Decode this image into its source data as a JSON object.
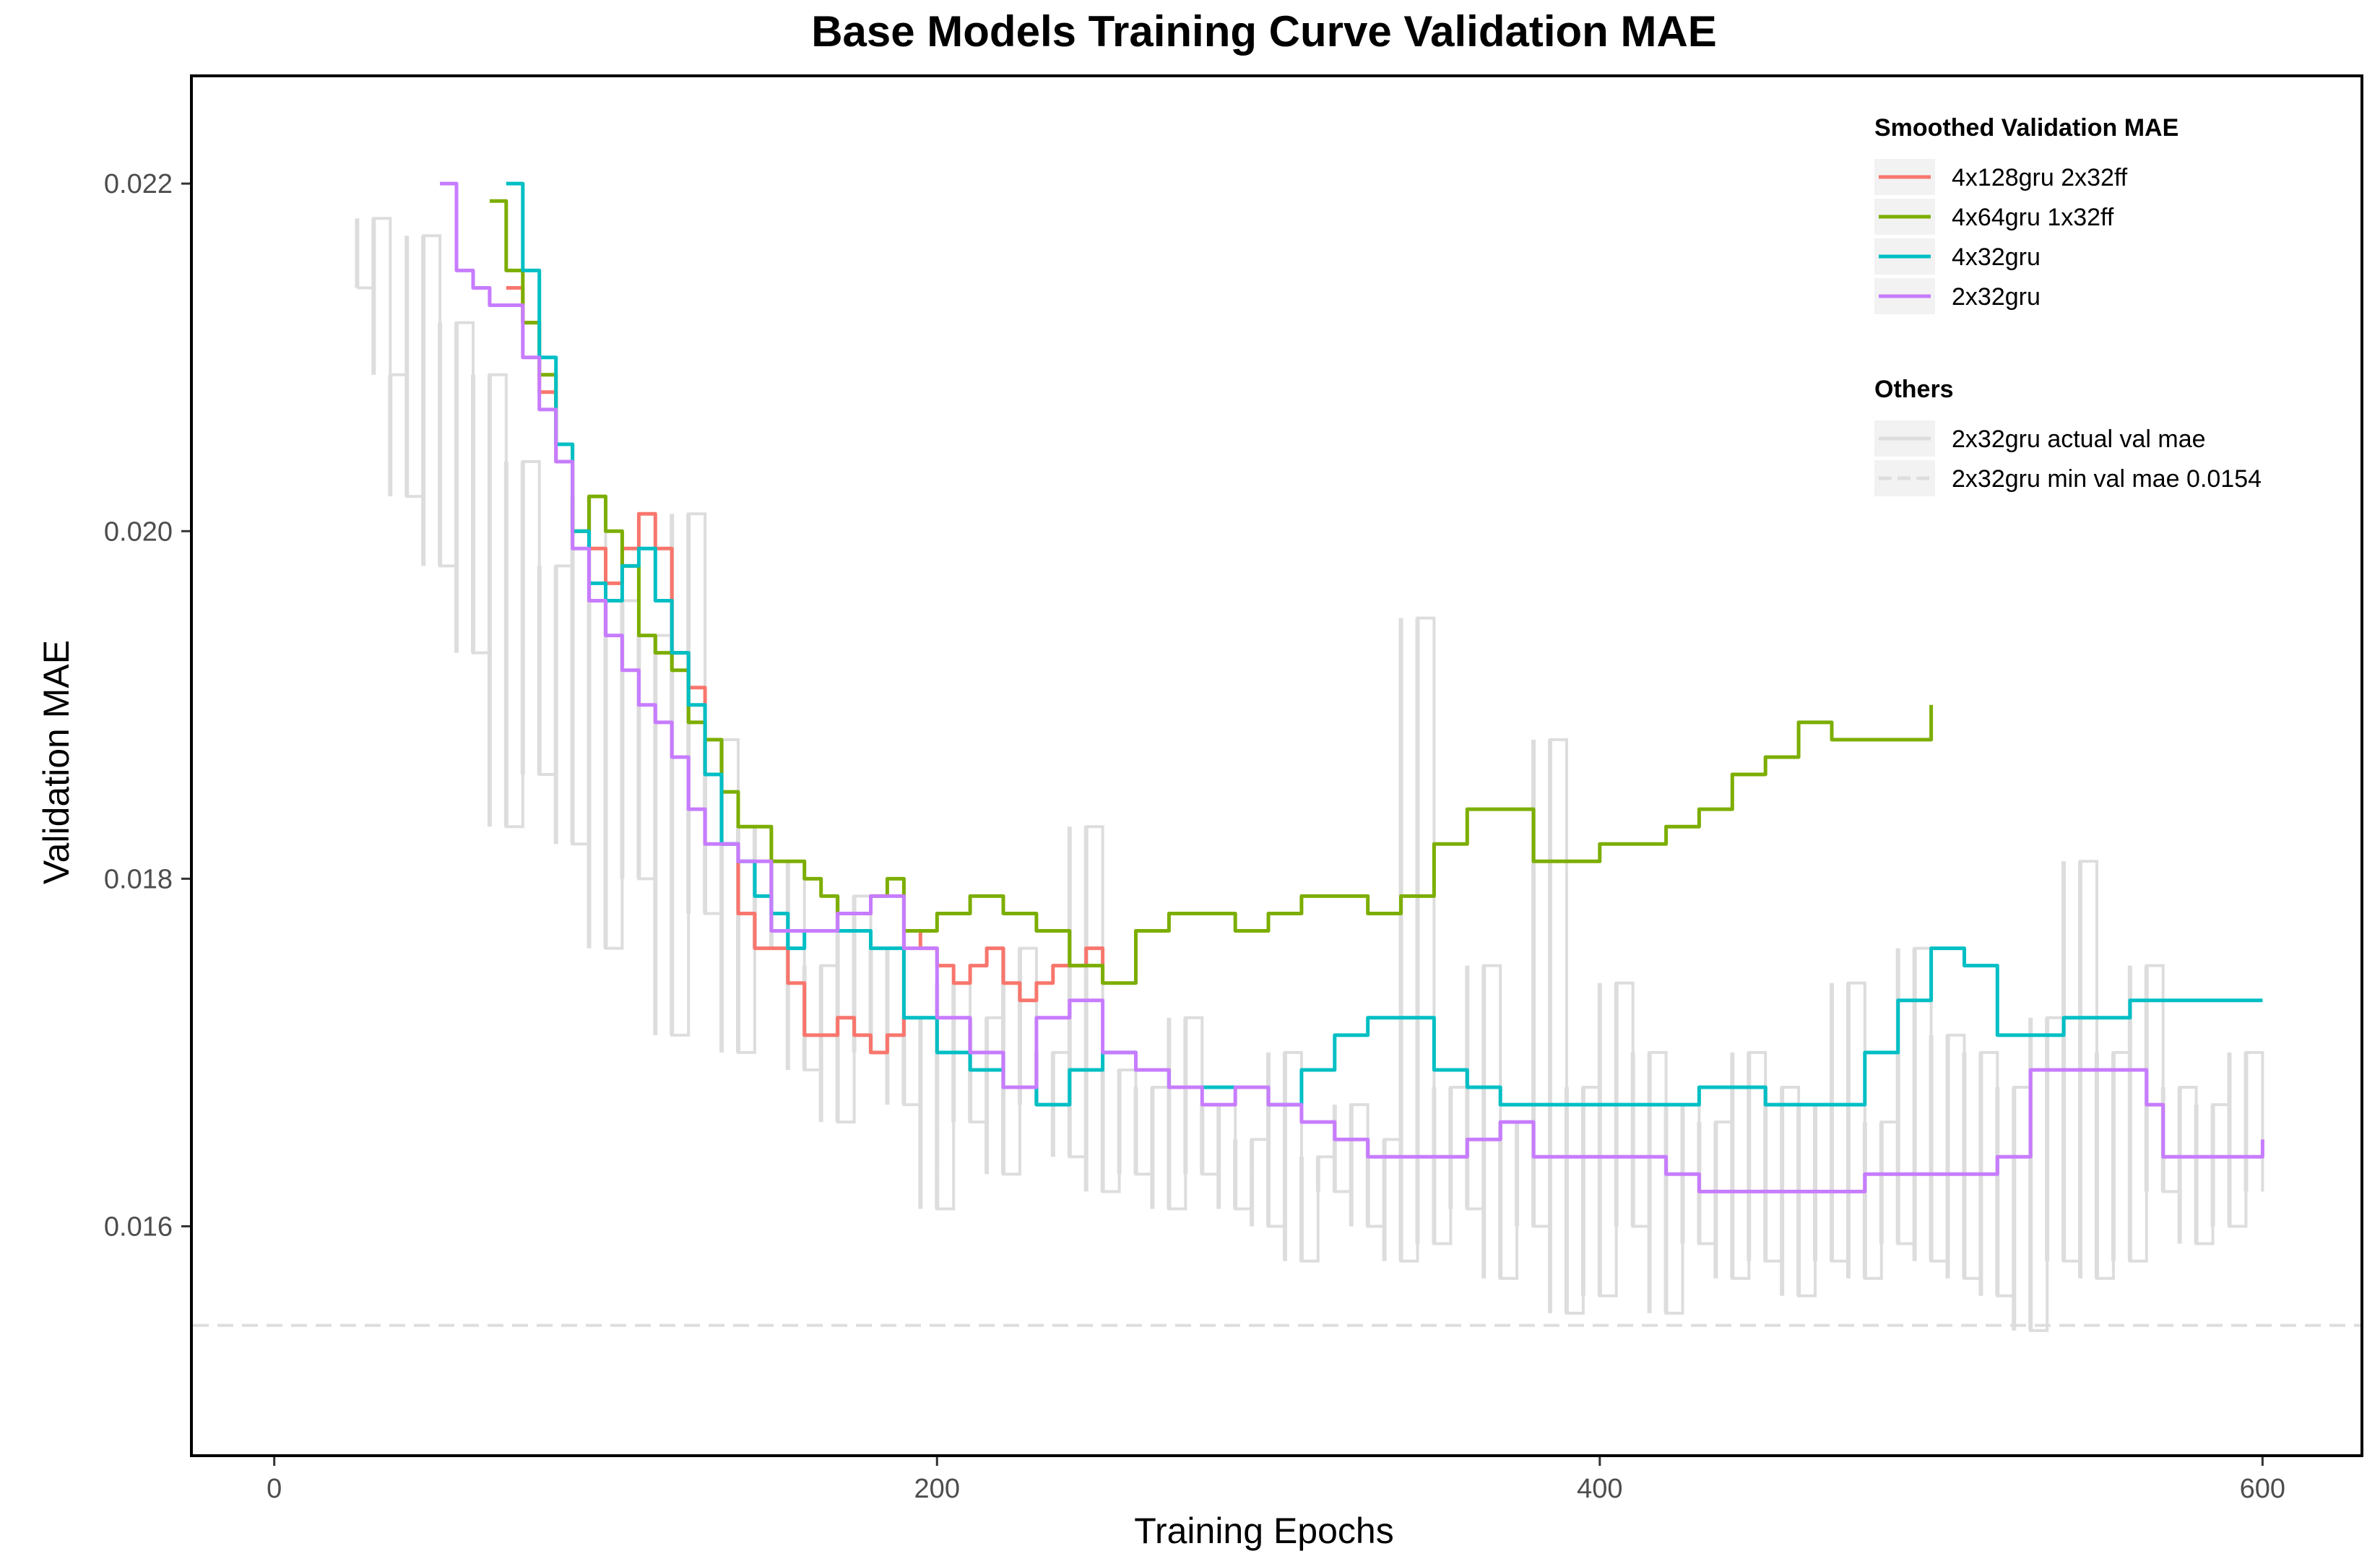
{
  "chart_data": {
    "type": "line",
    "title": "Base Models Training Curve Validation MAE",
    "xlabel": "Training Epochs",
    "ylabel": "Validation MAE",
    "xlim": [
      -25,
      630
    ],
    "ylim": [
      0.01468,
      0.02262
    ],
    "x_ticks": [
      0,
      200,
      400,
      600
    ],
    "x_tick_labels": [
      "0",
      "200",
      "400",
      "600"
    ],
    "y_ticks": [
      0.016,
      0.018,
      0.02,
      0.022
    ],
    "y_tick_labels": [
      "0.016",
      "0.018",
      "0.020",
      "0.022"
    ],
    "grid": false,
    "legend_position": "top-right",
    "legend_groups": [
      {
        "title": "Smoothed Validation MAE",
        "entries": [
          "4x128gru 2x32ff",
          "4x64gru 1x32ff",
          "4x32gru",
          "2x32gru"
        ]
      },
      {
        "title": "Others",
        "entries": [
          "2x32gru actual val mae",
          "2x32gru min val mae 0.0154"
        ]
      }
    ],
    "series": [
      {
        "name": "4x128gru 2x32ff",
        "color": "#f8766d",
        "x": [
          70,
          75,
          80,
          85,
          90,
          95,
          100,
          105,
          110,
          115,
          120,
          125,
          130,
          135,
          140,
          145,
          150,
          155,
          160,
          165,
          170,
          175,
          180,
          185,
          190,
          195,
          200,
          205,
          210,
          215,
          220,
          225,
          230,
          235,
          240,
          245,
          250
        ],
        "values": [
          0.0214,
          0.0212,
          0.0208,
          0.0204,
          0.02,
          0.0199,
          0.0197,
          0.0199,
          0.0201,
          0.0199,
          0.0193,
          0.0191,
          0.0186,
          0.0182,
          0.0178,
          0.0176,
          0.0176,
          0.0174,
          0.0171,
          0.0171,
          0.0172,
          0.0171,
          0.017,
          0.0171,
          0.0177,
          0.0176,
          0.0175,
          0.0174,
          0.0175,
          0.0176,
          0.0174,
          0.0173,
          0.0174,
          0.0175,
          0.0175,
          0.0176,
          0.0174
        ]
      },
      {
        "name": "4x64gru 1x32ff",
        "color": "#7cae00",
        "x": [
          65,
          70,
          75,
          80,
          85,
          90,
          95,
          100,
          105,
          110,
          115,
          120,
          125,
          130,
          135,
          140,
          145,
          150,
          155,
          160,
          165,
          170,
          175,
          180,
          185,
          190,
          200,
          210,
          220,
          230,
          240,
          250,
          260,
          270,
          280,
          290,
          300,
          310,
          320,
          330,
          340,
          350,
          360,
          370,
          380,
          390,
          400,
          410,
          420,
          430,
          440,
          450,
          460,
          470,
          480,
          490,
          500
        ],
        "values": [
          0.0219,
          0.0215,
          0.0212,
          0.0209,
          0.0205,
          0.02,
          0.0202,
          0.02,
          0.0198,
          0.0194,
          0.0193,
          0.0192,
          0.0189,
          0.0188,
          0.0185,
          0.0183,
          0.0183,
          0.0181,
          0.0181,
          0.018,
          0.0179,
          0.0178,
          0.0178,
          0.0179,
          0.018,
          0.0177,
          0.0178,
          0.0179,
          0.0178,
          0.0177,
          0.0175,
          0.0174,
          0.0177,
          0.0178,
          0.0178,
          0.0177,
          0.0178,
          0.0179,
          0.0179,
          0.0178,
          0.0179,
          0.0182,
          0.0184,
          0.0184,
          0.0181,
          0.0181,
          0.0182,
          0.0182,
          0.0183,
          0.0184,
          0.0186,
          0.0187,
          0.0189,
          0.0188,
          0.0188,
          0.0188,
          0.019
        ]
      },
      {
        "name": "4x32gru",
        "color": "#00bfc4",
        "x": [
          70,
          75,
          80,
          85,
          90,
          95,
          100,
          105,
          110,
          115,
          120,
          125,
          130,
          135,
          140,
          145,
          150,
          155,
          160,
          170,
          180,
          190,
          200,
          210,
          220,
          230,
          240,
          250,
          260,
          270,
          280,
          290,
          300,
          310,
          320,
          330,
          340,
          350,
          360,
          370,
          380,
          390,
          400,
          410,
          420,
          430,
          440,
          450,
          460,
          470,
          480,
          490,
          500,
          510,
          520,
          530,
          540,
          550,
          560,
          570,
          580,
          590,
          600
        ],
        "values": [
          0.022,
          0.0215,
          0.021,
          0.0205,
          0.02,
          0.0197,
          0.0196,
          0.0198,
          0.0199,
          0.0196,
          0.0193,
          0.019,
          0.0186,
          0.0182,
          0.0181,
          0.0179,
          0.0178,
          0.0176,
          0.0177,
          0.0177,
          0.0176,
          0.0172,
          0.017,
          0.0169,
          0.0168,
          0.0167,
          0.0169,
          0.017,
          0.0169,
          0.0168,
          0.0168,
          0.0168,
          0.0167,
          0.0169,
          0.0171,
          0.0172,
          0.0172,
          0.0169,
          0.0168,
          0.0167,
          0.0167,
          0.0167,
          0.0167,
          0.0167,
          0.0167,
          0.0168,
          0.0168,
          0.0167,
          0.0167,
          0.0167,
          0.017,
          0.0173,
          0.0176,
          0.0175,
          0.0171,
          0.0171,
          0.0172,
          0.0172,
          0.0173,
          0.0173,
          0.0173,
          0.0173,
          0.0173
        ]
      },
      {
        "name": "2x32gru",
        "color": "#c77cff",
        "x": [
          50,
          55,
          60,
          65,
          70,
          75,
          80,
          85,
          90,
          95,
          100,
          105,
          110,
          115,
          120,
          125,
          130,
          140,
          150,
          160,
          170,
          180,
          190,
          200,
          210,
          220,
          230,
          240,
          250,
          260,
          270,
          280,
          290,
          300,
          310,
          320,
          330,
          340,
          350,
          360,
          370,
          380,
          390,
          400,
          410,
          420,
          430,
          440,
          450,
          460,
          470,
          480,
          490,
          500,
          510,
          520,
          525,
          530,
          540,
          550,
          560,
          565,
          570,
          580,
          590,
          600
        ],
        "values": [
          0.022,
          0.0215,
          0.0214,
          0.0213,
          0.0213,
          0.021,
          0.0207,
          0.0204,
          0.0199,
          0.0196,
          0.0194,
          0.0192,
          0.019,
          0.0189,
          0.0187,
          0.0184,
          0.0182,
          0.0181,
          0.0177,
          0.0177,
          0.0178,
          0.0179,
          0.0176,
          0.0172,
          0.017,
          0.0168,
          0.0172,
          0.0173,
          0.017,
          0.0169,
          0.0168,
          0.0167,
          0.0168,
          0.0167,
          0.0166,
          0.0165,
          0.0164,
          0.0164,
          0.0164,
          0.0165,
          0.0166,
          0.0164,
          0.0164,
          0.0164,
          0.0164,
          0.0163,
          0.0162,
          0.0162,
          0.0162,
          0.0162,
          0.0162,
          0.0163,
          0.0163,
          0.0163,
          0.0163,
          0.0164,
          0.0164,
          0.0169,
          0.0169,
          0.0169,
          0.0169,
          0.0167,
          0.0164,
          0.0164,
          0.0164,
          0.0165
        ]
      },
      {
        "name": "2x32gru actual val mae",
        "color": "#dddddd",
        "x": [
          25,
          30,
          35,
          40,
          45,
          50,
          55,
          60,
          65,
          70,
          75,
          80,
          85,
          90,
          95,
          100,
          105,
          110,
          115,
          120,
          125,
          130,
          135,
          140,
          145,
          150,
          155,
          160,
          165,
          170,
          175,
          180,
          185,
          190,
          195,
          200,
          205,
          210,
          215,
          220,
          225,
          230,
          235,
          240,
          245,
          250,
          255,
          260,
          265,
          270,
          275,
          280,
          285,
          290,
          295,
          300,
          305,
          310,
          315,
          320,
          325,
          330,
          335,
          340,
          345,
          350,
          355,
          360,
          365,
          370,
          375,
          380,
          385,
          390,
          395,
          400,
          405,
          410,
          415,
          420,
          425,
          430,
          435,
          440,
          445,
          450,
          455,
          460,
          465,
          470,
          475,
          480,
          485,
          490,
          495,
          500,
          505,
          510,
          515,
          520,
          525,
          530,
          535,
          540,
          545,
          550,
          555,
          560,
          565,
          570,
          575,
          580,
          585,
          590,
          595,
          600
        ],
        "values": [
          0.0214,
          0.0218,
          0.0209,
          0.0202,
          0.0217,
          0.0198,
          0.0212,
          0.0193,
          0.0209,
          0.0183,
          0.0204,
          0.0186,
          0.0198,
          0.0182,
          0.0202,
          0.0176,
          0.0196,
          0.018,
          0.0194,
          0.0171,
          0.0201,
          0.0178,
          0.0188,
          0.017,
          0.0183,
          0.0176,
          0.0181,
          0.0169,
          0.0175,
          0.0166,
          0.0179,
          0.017,
          0.0176,
          0.0167,
          0.0172,
          0.0161,
          0.0174,
          0.0166,
          0.0172,
          0.0163,
          0.0176,
          0.0167,
          0.017,
          0.0164,
          0.0183,
          0.0162,
          0.0169,
          0.0163,
          0.0168,
          0.0161,
          0.0172,
          0.0163,
          0.0167,
          0.0161,
          0.0165,
          0.016,
          0.017,
          0.0158,
          0.0164,
          0.0162,
          0.0167,
          0.016,
          0.0165,
          0.0158,
          0.0195,
          0.0159,
          0.0168,
          0.0161,
          0.0175,
          0.0157,
          0.0166,
          0.016,
          0.0188,
          0.0155,
          0.0168,
          0.0156,
          0.0174,
          0.016,
          0.017,
          0.0155,
          0.0167,
          0.0159,
          0.0166,
          0.0157,
          0.017,
          0.0158,
          0.0168,
          0.0156,
          0.0167,
          0.0158,
          0.0174,
          0.0157,
          0.0166,
          0.0159,
          0.0176,
          0.0158,
          0.0171,
          0.0157,
          0.017,
          0.0156,
          0.0168,
          0.0154,
          0.0172,
          0.0158,
          0.0181,
          0.0157,
          0.017,
          0.0158,
          0.0175,
          0.0162,
          0.0168,
          0.0159,
          0.0167,
          0.016,
          0.017,
          0.0162
        ]
      },
      {
        "name": "2x32gru min val mae 0.0154",
        "color": "#dddddd",
        "dashed": true,
        "x": [
          -25,
          630
        ],
        "values": [
          0.01543,
          0.01543
        ]
      }
    ]
  }
}
